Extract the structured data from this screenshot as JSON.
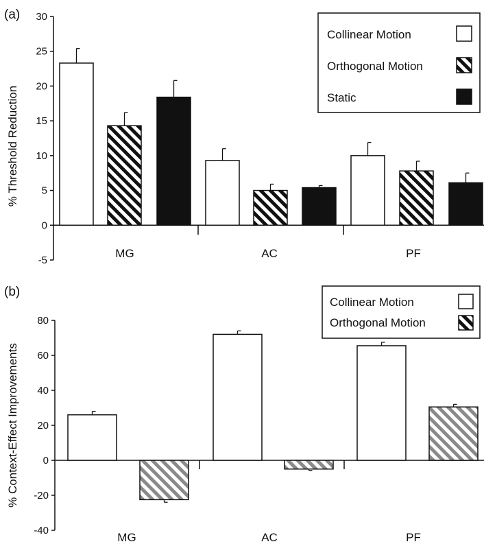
{
  "chart_data": [
    {
      "panel_label": "(a)",
      "type": "bar",
      "categories": [
        "MG",
        "AC",
        "PF"
      ],
      "ylabel": "% Threshold Reduction",
      "ylim": [
        -5,
        30
      ],
      "yticks": [
        "-5",
        "0",
        "5",
        "10",
        "15",
        "20",
        "25",
        "30"
      ],
      "series": [
        {
          "name": "Collinear Motion",
          "values": [
            23.3,
            9.3,
            10.0
          ],
          "errors": [
            2.1,
            1.7,
            1.9
          ],
          "fill": "white"
        },
        {
          "name": "Orthogonal Motion",
          "values": [
            14.3,
            5.0,
            7.8
          ],
          "errors": [
            1.9,
            0.9,
            1.4
          ],
          "fill": "hatch-black"
        },
        {
          "name": "Static",
          "values": [
            18.4,
            5.4,
            6.1
          ],
          "errors": [
            2.4,
            0.3,
            1.4
          ],
          "fill": "black"
        }
      ],
      "legend_position": "top-right",
      "grid": false
    },
    {
      "panel_label": "(b)",
      "type": "bar",
      "categories": [
        "MG",
        "AC",
        "PF"
      ],
      "ylabel": "% Context-Effect Improvements",
      "ylim": [
        -40,
        80
      ],
      "yticks": [
        "-40",
        "-20",
        "0",
        "20",
        "40",
        "60",
        "80"
      ],
      "series": [
        {
          "name": "Collinear Motion",
          "values": [
            26,
            72,
            65.5
          ],
          "errors": [
            2,
            2,
            2
          ],
          "fill": "white"
        },
        {
          "name": "Orthogonal Motion",
          "values": [
            -22.5,
            -5,
            30.5
          ],
          "errors": [
            1.5,
            0.8,
            1.5
          ],
          "fill": "hatch-gray"
        }
      ],
      "legend_position": "top-right",
      "grid": false
    }
  ],
  "colors": {
    "axis": "#111111",
    "hatch_black": "#111111",
    "hatch_gray": "#8a8a8a",
    "static": "#111111"
  }
}
